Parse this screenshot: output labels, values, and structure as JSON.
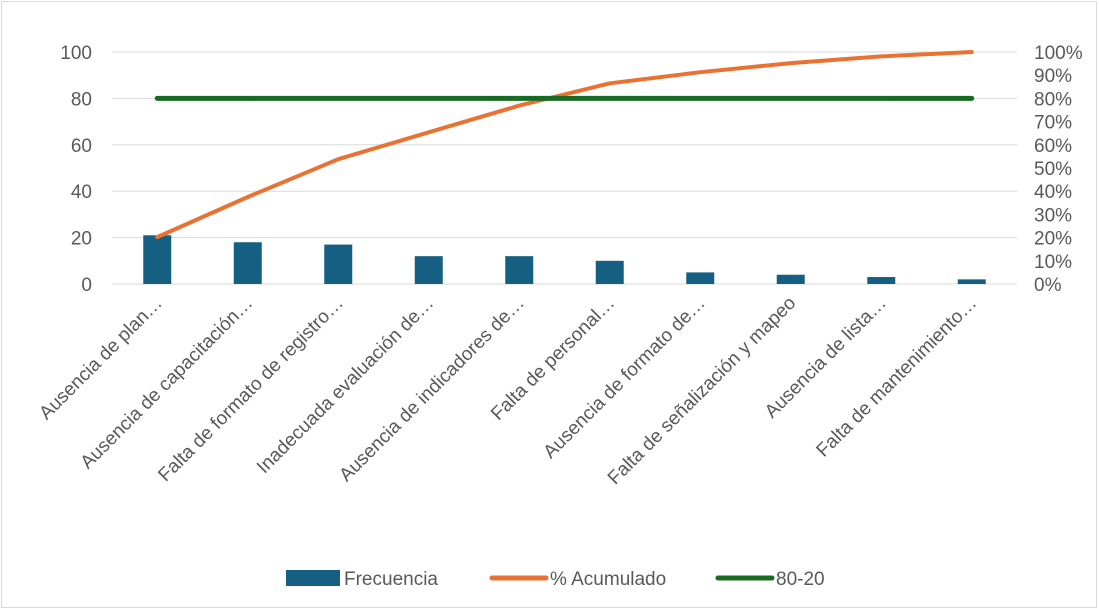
{
  "chart_data": {
    "type": "bar",
    "title": "",
    "xlabel": "",
    "ylabel": "",
    "categories": [
      "Ausencia de plan…",
      "Ausencia de capacitación…",
      "Falta de formato de registro…",
      "Inadecuada evaluación de…",
      "Ausencia de indicadores de…",
      "Falta de personal…",
      "Ausencia de formato de…",
      "Falta de señalización y mapeo",
      "Ausencia de lista…",
      "Falta de mantenimiento…"
    ],
    "series": [
      {
        "name": "Frecuencia",
        "type": "bar",
        "axis": "left",
        "color": "#156082",
        "values": [
          21,
          18,
          17,
          12,
          12,
          10,
          5,
          4,
          3,
          2
        ]
      },
      {
        "name": "% Acumulado",
        "type": "line",
        "axis": "right",
        "color": "#e97132",
        "values": [
          20.2,
          37.5,
          53.8,
          65.4,
          76.9,
          86.5,
          91.3,
          95.2,
          98.1,
          100
        ]
      },
      {
        "name": "80-20",
        "type": "line",
        "axis": "right",
        "color": "#196b24",
        "values": [
          80,
          80,
          80,
          80,
          80,
          80,
          80,
          80,
          80,
          80
        ]
      }
    ],
    "ylim": [
      0,
      100
    ],
    "y_ticks": [
      "0",
      "20",
      "40",
      "60",
      "80",
      "100"
    ],
    "y2lim": [
      0,
      100
    ],
    "y2_ticks": [
      "0%",
      "10%",
      "20%",
      "30%",
      "40%",
      "50%",
      "60%",
      "70%",
      "80%",
      "90%",
      "100%"
    ],
    "grid": true,
    "legend_position": "bottom"
  }
}
